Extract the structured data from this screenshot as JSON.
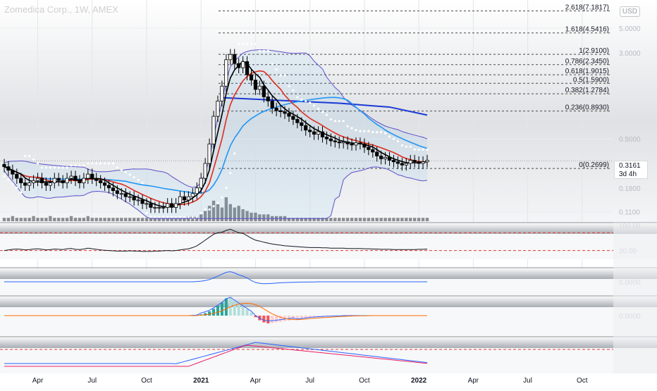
{
  "header": {
    "title": "Zomedica Corp., 1W, AMEX",
    "currency": "USD"
  },
  "price_badge": {
    "price": "0.3161",
    "countdown": "3d 4h"
  },
  "chart_data": [
    {
      "type": "candlestick",
      "pane": "price",
      "title": "Zomedica Corp., 1W, AMEX",
      "scale": "log",
      "y_ticks": [
        "5.0000",
        "3.0000",
        "0.5000",
        "0.1800",
        "0.1100"
      ],
      "x_ticks": [
        "Apr",
        "Jul",
        "Oct",
        "2021",
        "Apr",
        "Jul",
        "Oct",
        "2022",
        "Apr",
        "Jul",
        "Oct"
      ],
      "x_tick_dates": [
        "2020-04",
        "2020-07",
        "2020-10",
        "2021-01",
        "2021-04",
        "2021-07",
        "2021-10",
        "2022-01",
        "2022-04",
        "2022-07",
        "2022-10"
      ],
      "last_price": 0.3161,
      "fib_levels": [
        {
          "label": "2.618(7.1817)",
          "value": 7.1817
        },
        {
          "label": "1.618(4.5416)",
          "value": 4.5416
        },
        {
          "label": "1(2.9100)",
          "value": 2.91
        },
        {
          "label": "0.786(2.3450)",
          "value": 2.345
        },
        {
          "label": "0.618(1.9015)",
          "value": 1.9015
        },
        {
          "label": "0.5(1.5900)",
          "value": 1.59
        },
        {
          "label": "0.382(1.2784)",
          "value": 1.2784
        },
        {
          "label": "0.236(0.8930)",
          "value": 0.893
        },
        {
          "label": "0(0.2699)",
          "value": 0.2699
        }
      ],
      "series": [
        {
          "kind": "close",
          "values": [
            0.28,
            0.26,
            0.24,
            0.22,
            0.2,
            0.19,
            0.2,
            0.21,
            0.22,
            0.2,
            0.19,
            0.2,
            0.22,
            0.21,
            0.2,
            0.22,
            0.23,
            0.21,
            0.2,
            0.22,
            0.24,
            0.22,
            0.21,
            0.2,
            0.19,
            0.18,
            0.17,
            0.16,
            0.16,
            0.15,
            0.15,
            0.14,
            0.14,
            0.13,
            0.13,
            0.12,
            0.12,
            0.12,
            0.12,
            0.13,
            0.12,
            0.13,
            0.15,
            0.14,
            0.15,
            0.16,
            0.18,
            0.22,
            0.3,
            0.45,
            0.8,
            1.1,
            1.5,
            2.6,
            2.9,
            2.4,
            2.2,
            2.5,
            1.9,
            1.7,
            1.4,
            1.5,
            1.2,
            1.1,
            0.95,
            0.9,
            0.88,
            0.85,
            0.8,
            0.75,
            0.7,
            0.66,
            0.6,
            0.58,
            0.55,
            0.58,
            0.52,
            0.5,
            0.48,
            0.47,
            0.46,
            0.47,
            0.45,
            0.44,
            0.46,
            0.45,
            0.42,
            0.4,
            0.38,
            0.35,
            0.33,
            0.34,
            0.32,
            0.31,
            0.3,
            0.29,
            0.3,
            0.32,
            0.31,
            0.3,
            0.31,
            0.32
          ]
        },
        {
          "kind": "volume",
          "values": [
            2,
            2,
            3,
            2,
            2,
            2,
            2,
            3,
            2,
            2,
            2,
            3,
            2,
            2,
            2,
            2,
            3,
            2,
            2,
            2,
            3,
            2,
            2,
            2,
            2,
            2,
            2,
            2,
            2,
            2,
            2,
            2,
            2,
            2,
            2,
            2,
            2,
            2,
            2,
            2,
            2,
            2,
            2,
            2,
            3,
            3,
            3,
            4,
            6,
            9,
            12,
            10,
            8,
            14,
            10,
            8,
            9,
            7,
            6,
            5,
            5,
            4,
            4,
            4,
            3,
            3,
            3,
            3,
            2,
            2,
            2,
            2,
            2,
            2,
            2,
            2,
            2,
            2,
            2,
            2,
            2,
            2,
            2,
            2,
            2,
            2,
            2,
            2,
            2,
            2,
            2,
            2,
            2,
            2,
            2,
            2,
            2,
            2,
            2,
            2,
            2,
            2
          ]
        },
        {
          "kind": "sma-short",
          "color": "#000000"
        },
        {
          "kind": "sma-mid",
          "color": "#e02b1d"
        },
        {
          "kind": "sma-long",
          "color": "#2196f3"
        },
        {
          "kind": "sma-200",
          "color": "#1b39d6"
        },
        {
          "kind": "bollinger",
          "color": "#5e4fc9"
        },
        {
          "kind": "parabolic-sar",
          "color": "#ffffff"
        }
      ]
    },
    {
      "type": "line",
      "pane": "oscillator-1",
      "y_ticks": [
        "100.00",
        "20.00"
      ],
      "values": [
        20,
        22,
        24,
        25,
        24,
        22,
        23,
        25,
        26,
        24,
        22,
        23,
        25,
        24,
        23,
        26,
        27,
        24,
        23,
        25,
        28,
        26,
        24,
        22,
        21,
        20,
        19,
        18,
        18,
        18,
        19,
        18,
        18,
        17,
        17,
        17,
        18,
        18,
        19,
        20,
        19,
        20,
        22,
        24,
        26,
        30,
        36,
        45,
        55,
        65,
        75,
        80,
        82,
        88,
        92,
        86,
        80,
        78,
        70,
        62,
        55,
        52,
        48,
        45,
        42,
        40,
        38,
        36,
        35,
        34,
        33,
        32,
        31,
        30,
        30,
        30,
        29,
        29,
        28,
        28,
        28,
        28,
        27,
        27,
        27,
        27,
        26,
        26,
        25,
        25,
        24,
        24,
        24,
        23,
        23,
        23,
        23,
        23,
        23,
        24,
        24,
        25
      ]
    },
    {
      "type": "line",
      "pane": "oscillator-2",
      "y_ticks": [
        "0.0000"
      ],
      "values": [
        0,
        0,
        0,
        0,
        0,
        0,
        0,
        0,
        0,
        0,
        0,
        0,
        0,
        0,
        0,
        0,
        0,
        0,
        0,
        0,
        0,
        0,
        0,
        0,
        0,
        0,
        0,
        0,
        0,
        0,
        0,
        0,
        0,
        0,
        0,
        0,
        0,
        0,
        0,
        0,
        0,
        0,
        0,
        0,
        0,
        0,
        0.02,
        0.05,
        0.1,
        0.18,
        0.3,
        0.45,
        0.6,
        0.75,
        0.8,
        0.7,
        0.55,
        0.45,
        0.3,
        0.1,
        -0.05,
        -0.12,
        -0.15,
        -0.14,
        -0.12,
        -0.1,
        -0.08,
        -0.06,
        -0.05,
        -0.04,
        -0.03,
        -0.02,
        -0.02,
        -0.01,
        -0.01,
        0,
        0,
        0,
        0,
        0,
        0,
        0,
        0,
        0,
        0,
        0,
        0,
        0,
        0,
        0,
        0,
        0,
        0,
        0,
        0,
        0,
        0,
        0,
        0,
        0,
        0,
        0
      ]
    },
    {
      "type": "bar",
      "pane": "macd",
      "y_ticks": [
        "0.0000"
      ],
      "histogram": [
        0,
        0,
        0,
        0,
        0,
        0,
        0,
        0,
        0,
        0,
        0,
        0,
        0,
        0,
        0,
        0,
        0,
        0,
        0,
        0,
        0,
        0,
        0,
        0,
        0,
        0,
        0,
        0,
        0,
        0,
        0,
        0,
        0,
        0,
        0,
        0,
        0,
        0,
        0,
        0,
        0,
        0,
        0,
        0,
        0,
        0.01,
        0.02,
        0.04,
        0.08,
        0.14,
        0.22,
        0.32,
        0.42,
        0.55,
        0.6,
        0.5,
        0.4,
        0.3,
        0.2,
        0.1,
        -0.05,
        -0.15,
        -0.22,
        -0.25,
        -0.24,
        -0.22,
        -0.2,
        -0.18,
        -0.16,
        -0.14,
        -0.12,
        -0.1,
        -0.08,
        -0.06,
        -0.05,
        -0.04,
        -0.03,
        -0.02,
        -0.02,
        -0.01,
        -0.01,
        0,
        0,
        0,
        0,
        0,
        0,
        0,
        0,
        0,
        0,
        0,
        0,
        0,
        0,
        0,
        0,
        0,
        0,
        0,
        0,
        0
      ],
      "series": [
        {
          "kind": "macd-line",
          "color": "#2962ff"
        },
        {
          "kind": "signal-line",
          "color": "#ff6d00"
        }
      ]
    },
    {
      "type": "line",
      "pane": "oscillator-4",
      "series": [
        {
          "kind": "line-a",
          "color": "#2962ff"
        },
        {
          "kind": "line-b",
          "color": "#e91e63"
        }
      ]
    }
  ]
}
